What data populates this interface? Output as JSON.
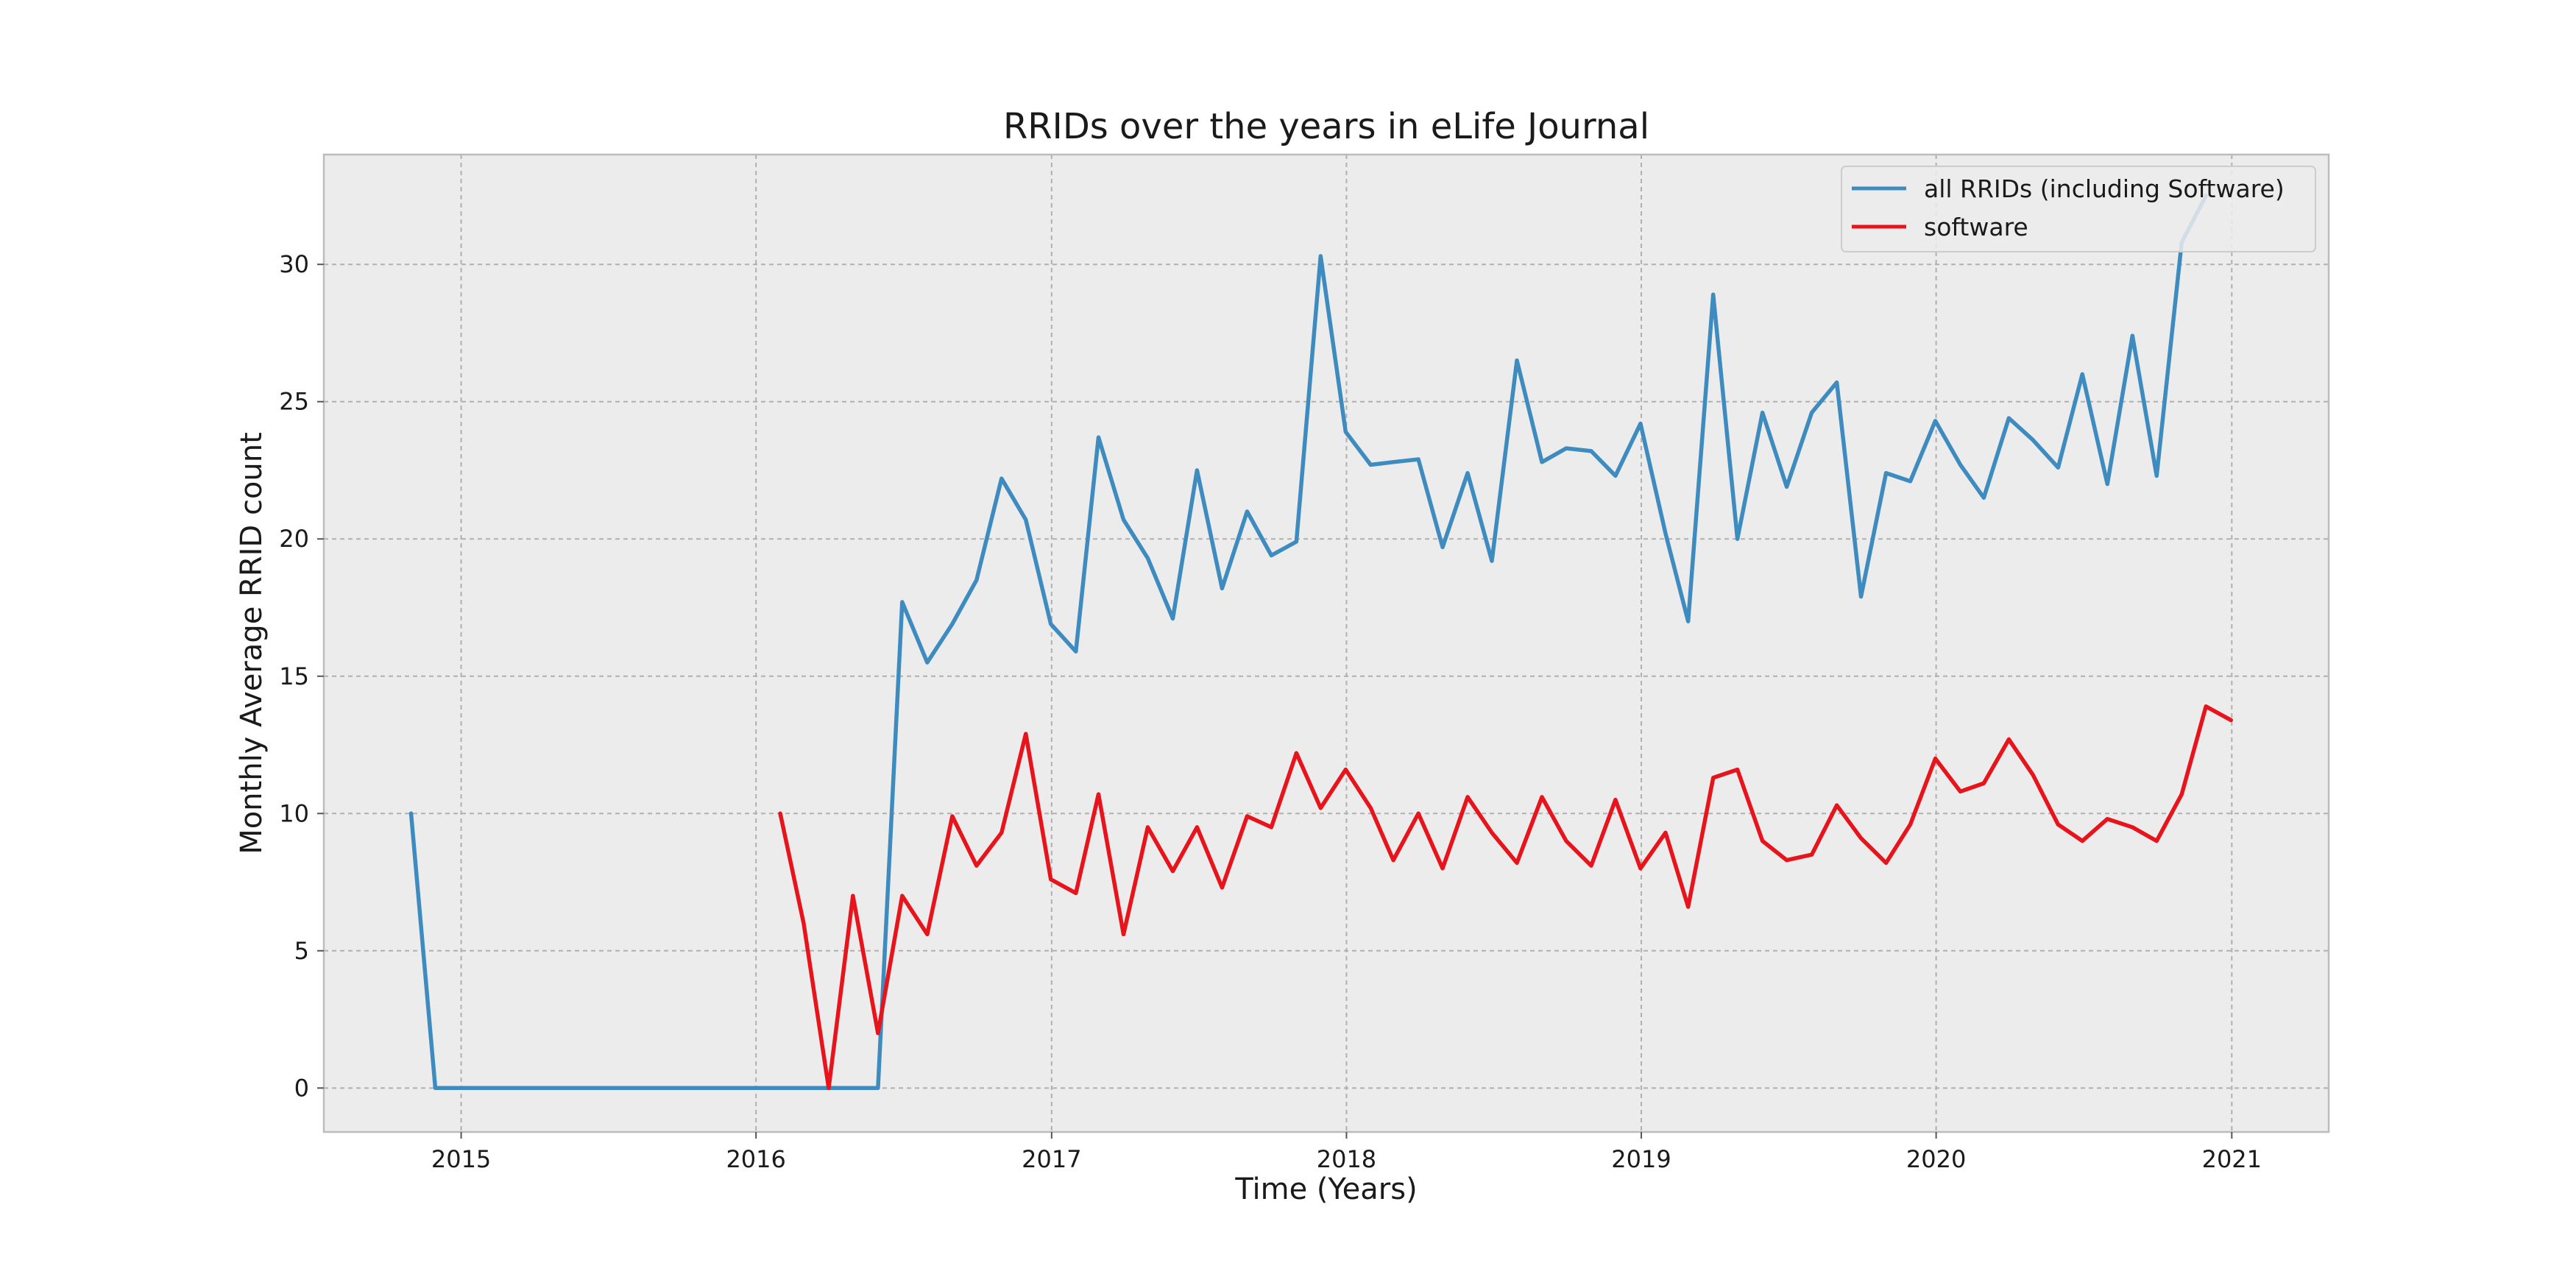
{
  "chart_data": {
    "type": "line",
    "title": "RRIDs over the years in eLife Journal",
    "xlabel": "Time (Years)",
    "ylabel": "Monthly Average RRID count",
    "xlim": [
      "2014-07-15",
      "2021-05-01"
    ],
    "ylim": [
      -1.6,
      34
    ],
    "x_ticks": [
      "2015-01-01",
      "2016-01-01",
      "2017-01-01",
      "2018-01-01",
      "2019-01-01",
      "2020-01-01",
      "2021-01-01"
    ],
    "x_tick_labels": [
      "2015",
      "2016",
      "2017",
      "2018",
      "2019",
      "2020",
      "2021"
    ],
    "y_ticks": [
      0,
      5,
      10,
      15,
      20,
      25,
      30
    ],
    "y_tick_labels": [
      "0",
      "5",
      "10",
      "15",
      "20",
      "25",
      "30"
    ],
    "grid": true,
    "background": "#ececec",
    "legend_position": "top-right",
    "series": [
      {
        "name": "all RRIDs (including Software)",
        "color": "#3d8bbf",
        "points": [
          [
            "2014-10-31",
            10.0
          ],
          [
            "2014-11-30",
            0.0
          ],
          [
            "2015-12-31",
            0.0
          ],
          [
            "2016-05-31",
            0.0
          ],
          [
            "2016-06-30",
            17.7
          ],
          [
            "2016-07-31",
            15.5
          ],
          [
            "2016-08-31",
            16.9
          ],
          [
            "2016-09-30",
            18.5
          ],
          [
            "2016-10-31",
            22.2
          ],
          [
            "2016-11-30",
            20.7
          ],
          [
            "2016-12-31",
            16.9
          ],
          [
            "2017-01-31",
            15.9
          ],
          [
            "2017-02-28",
            23.7
          ],
          [
            "2017-03-31",
            20.7
          ],
          [
            "2017-04-30",
            19.3
          ],
          [
            "2017-05-31",
            17.1
          ],
          [
            "2017-06-30",
            22.5
          ],
          [
            "2017-07-31",
            18.2
          ],
          [
            "2017-08-31",
            21.0
          ],
          [
            "2017-09-30",
            19.4
          ],
          [
            "2017-10-31",
            19.9
          ],
          [
            "2017-11-30",
            30.3
          ],
          [
            "2017-12-31",
            23.9
          ],
          [
            "2018-01-31",
            22.7
          ],
          [
            "2018-02-28",
            22.8
          ],
          [
            "2018-03-31",
            22.9
          ],
          [
            "2018-04-30",
            19.7
          ],
          [
            "2018-05-31",
            22.4
          ],
          [
            "2018-06-30",
            19.2
          ],
          [
            "2018-07-31",
            26.5
          ],
          [
            "2018-08-31",
            22.8
          ],
          [
            "2018-09-30",
            23.3
          ],
          [
            "2018-10-31",
            23.2
          ],
          [
            "2018-11-30",
            22.3
          ],
          [
            "2018-12-31",
            24.2
          ],
          [
            "2019-01-31",
            20.2
          ],
          [
            "2019-02-28",
            17.0
          ],
          [
            "2019-03-31",
            28.9
          ],
          [
            "2019-04-30",
            20.0
          ],
          [
            "2019-05-31",
            24.6
          ],
          [
            "2019-06-30",
            21.9
          ],
          [
            "2019-07-31",
            24.6
          ],
          [
            "2019-08-31",
            25.7
          ],
          [
            "2019-09-30",
            17.9
          ],
          [
            "2019-10-31",
            22.4
          ],
          [
            "2019-11-30",
            22.1
          ],
          [
            "2019-12-31",
            24.3
          ],
          [
            "2020-01-31",
            22.7
          ],
          [
            "2020-02-29",
            21.5
          ],
          [
            "2020-03-31",
            24.4
          ],
          [
            "2020-04-30",
            23.6
          ],
          [
            "2020-05-31",
            22.6
          ],
          [
            "2020-06-30",
            26.0
          ],
          [
            "2020-07-31",
            22.0
          ],
          [
            "2020-08-31",
            27.4
          ],
          [
            "2020-09-30",
            22.3
          ],
          [
            "2020-10-31",
            30.8
          ],
          [
            "2020-11-30",
            32.5
          ]
        ]
      },
      {
        "name": "software",
        "color": "#e8141c",
        "points": [
          [
            "2016-01-31",
            10.0
          ],
          [
            "2016-02-29",
            6.0
          ],
          [
            "2016-03-31",
            0.0
          ],
          [
            "2016-04-30",
            7.0
          ],
          [
            "2016-05-31",
            2.0
          ],
          [
            "2016-06-30",
            7.0
          ],
          [
            "2016-07-31",
            5.6
          ],
          [
            "2016-08-31",
            9.9
          ],
          [
            "2016-09-30",
            8.1
          ],
          [
            "2016-10-31",
            9.3
          ],
          [
            "2016-11-30",
            12.9
          ],
          [
            "2016-12-31",
            7.6
          ],
          [
            "2017-01-31",
            7.1
          ],
          [
            "2017-02-28",
            10.7
          ],
          [
            "2017-03-31",
            5.6
          ],
          [
            "2017-04-30",
            9.5
          ],
          [
            "2017-05-31",
            7.9
          ],
          [
            "2017-06-30",
            9.5
          ],
          [
            "2017-07-31",
            7.3
          ],
          [
            "2017-08-31",
            9.9
          ],
          [
            "2017-09-30",
            9.5
          ],
          [
            "2017-10-31",
            12.2
          ],
          [
            "2017-11-30",
            10.2
          ],
          [
            "2017-12-31",
            11.6
          ],
          [
            "2018-01-31",
            10.2
          ],
          [
            "2018-02-28",
            8.3
          ],
          [
            "2018-03-31",
            10.0
          ],
          [
            "2018-04-30",
            8.0
          ],
          [
            "2018-05-31",
            10.6
          ],
          [
            "2018-06-30",
            9.3
          ],
          [
            "2018-07-31",
            8.2
          ],
          [
            "2018-08-31",
            10.6
          ],
          [
            "2018-09-30",
            9.0
          ],
          [
            "2018-10-31",
            8.1
          ],
          [
            "2018-11-30",
            10.5
          ],
          [
            "2018-12-31",
            8.0
          ],
          [
            "2019-01-31",
            9.3
          ],
          [
            "2019-02-28",
            6.6
          ],
          [
            "2019-03-31",
            11.3
          ],
          [
            "2019-04-30",
            11.6
          ],
          [
            "2019-05-31",
            9.0
          ],
          [
            "2019-06-30",
            8.3
          ],
          [
            "2019-07-31",
            8.5
          ],
          [
            "2019-08-31",
            10.3
          ],
          [
            "2019-09-30",
            9.1
          ],
          [
            "2019-10-31",
            8.2
          ],
          [
            "2019-11-30",
            9.6
          ],
          [
            "2019-12-31",
            12.0
          ],
          [
            "2020-01-31",
            10.8
          ],
          [
            "2020-02-29",
            11.1
          ],
          [
            "2020-03-31",
            12.7
          ],
          [
            "2020-04-30",
            11.4
          ],
          [
            "2020-05-31",
            9.6
          ],
          [
            "2020-06-30",
            9.0
          ],
          [
            "2020-07-31",
            9.8
          ],
          [
            "2020-08-31",
            9.5
          ],
          [
            "2020-09-30",
            9.0
          ],
          [
            "2020-10-31",
            10.7
          ],
          [
            "2020-11-30",
            13.9
          ],
          [
            "2020-12-31",
            13.4
          ]
        ]
      }
    ]
  }
}
